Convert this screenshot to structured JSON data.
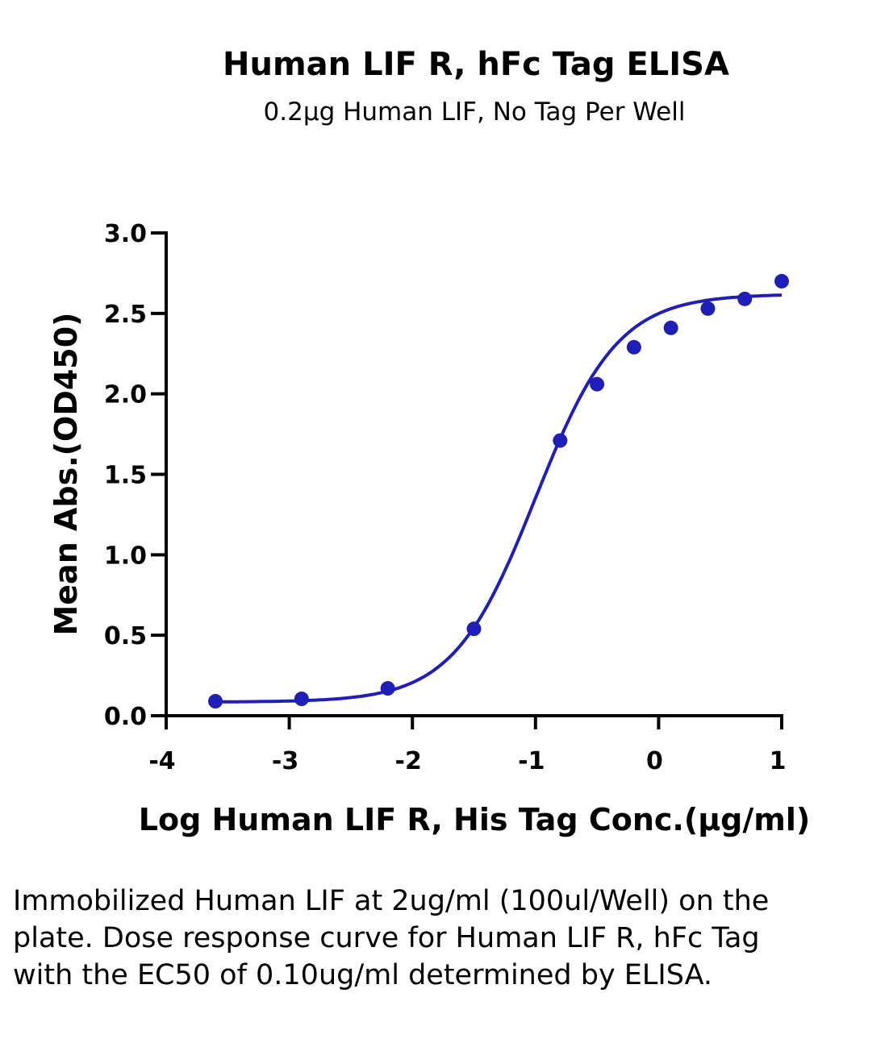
{
  "chart_data": {
    "type": "scatter",
    "title": "Human LIF R, hFc Tag ELISA",
    "subtitle": "0.2μg Human LIF, No Tag Per Well",
    "xlabel": "Log Human LIF R, His Tag Conc.(μg/ml)",
    "ylabel": "Mean Abs.(OD450)",
    "xlim": [
      -4,
      1
    ],
    "ylim": [
      0,
      3.0
    ],
    "x_ticks": [
      -4,
      -3,
      -2,
      -1,
      0,
      1
    ],
    "x_tick_labels": [
      "-4",
      "-3",
      "-2",
      "-1",
      "0",
      "1"
    ],
    "y_ticks": [
      0.0,
      0.5,
      1.0,
      1.5,
      2.0,
      2.5,
      3.0
    ],
    "y_tick_labels": [
      "0.0",
      "0.5",
      "1.0",
      "1.5",
      "2.0",
      "2.5",
      "3.0"
    ],
    "grid": false,
    "color": "#1f1fb8",
    "series": [
      {
        "points_x": [
          -3.6,
          -2.9,
          -2.2,
          -1.5,
          -0.8,
          -0.5,
          -0.2,
          0.1,
          0.4,
          0.7,
          1.0
        ],
        "points_y": [
          0.09,
          0.105,
          0.17,
          0.54,
          1.71,
          2.06,
          2.29,
          2.41,
          2.53,
          2.59,
          2.7
        ]
      }
    ],
    "fit_curve": {
      "model": "4PL",
      "bottom": 0.085,
      "top": 2.62,
      "logEC50": -1.0,
      "hill": 1.3
    }
  },
  "caption": "Immobilized Human LIF at 2ug/ml (100ul/Well) on the plate. Dose response curve for Human LIF R, hFc Tag with the EC50 of 0.10ug/ml determined by ELISA."
}
